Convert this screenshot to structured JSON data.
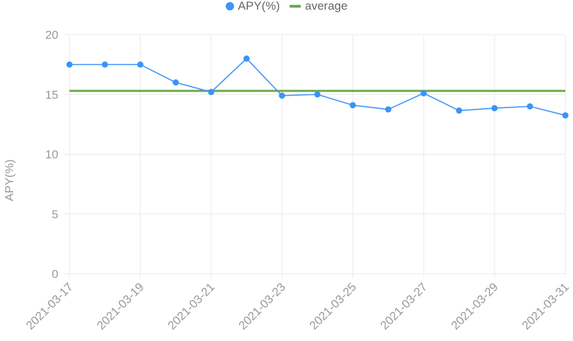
{
  "legend": {
    "series_label": "APY(%)",
    "average_label": "average"
  },
  "colors": {
    "series": "#3b94f7",
    "average": "#6aaa4b",
    "grid": "#e8e8e8",
    "tick_text": "#999999"
  },
  "chart_data": {
    "type": "line",
    "ylabel": "APY(%)",
    "ylim": [
      0,
      20
    ],
    "yticks": [
      0,
      5,
      10,
      15,
      20
    ],
    "xticks": [
      "2021-03-17",
      "2021-03-19",
      "2021-03-21",
      "2021-03-23",
      "2021-03-25",
      "2021-03-27",
      "2021-03-29",
      "2021-03-31"
    ],
    "x": [
      "2021-03-17",
      "2021-03-18",
      "2021-03-19",
      "2021-03-20",
      "2021-03-21",
      "2021-03-22",
      "2021-03-23",
      "2021-03-24",
      "2021-03-25",
      "2021-03-26",
      "2021-03-27",
      "2021-03-28",
      "2021-03-29",
      "2021-03-30",
      "2021-03-31"
    ],
    "series": [
      {
        "name": "APY(%)",
        "values": [
          17.5,
          17.5,
          17.5,
          16.0,
          15.2,
          18.0,
          14.9,
          15.0,
          14.1,
          13.75,
          15.1,
          13.65,
          13.85,
          14.0,
          13.25
        ]
      }
    ],
    "average": {
      "name": "average",
      "value": 15.3
    },
    "grid": true,
    "legend_position": "top-center"
  }
}
